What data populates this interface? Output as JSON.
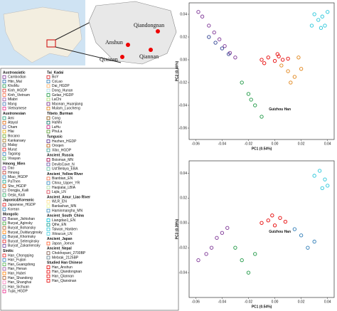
{
  "map": {
    "places": [
      "Anshun",
      "Qiandongnan",
      "Qixinan",
      "Qiannan"
    ]
  },
  "legend": {
    "groups": [
      {
        "title": "Austroasiatic",
        "items": [
          {
            "name": "Cambodian",
            "color": "#7b3294"
          },
          {
            "name": "Htin_Mal",
            "color": "#2166ac"
          },
          {
            "name": "KhoMu",
            "color": "#1a9850"
          },
          {
            "name": "Kinh_HGDP",
            "color": "#d73027"
          },
          {
            "name": "Kinh_Vietnam",
            "color": "#f46d43"
          },
          {
            "name": "Mlabri",
            "color": "#984ea3"
          },
          {
            "name": "Mang",
            "color": "#4575b4"
          },
          {
            "name": "Vietnamese",
            "color": "#e7298a"
          }
        ]
      },
      {
        "title": "Austronesian",
        "items": [
          {
            "name": "Ami",
            "color": "#1b9e77"
          },
          {
            "name": "Atayal",
            "color": "#d95f02"
          },
          {
            "name": "Cham",
            "color": "#7570b3"
          },
          {
            "name": "Hlai",
            "color": "#e6ab02"
          },
          {
            "name": "Bocano",
            "color": "#66a61e"
          },
          {
            "name": "Kankanaey",
            "color": "#a6761d"
          },
          {
            "name": "Malay",
            "color": "#666666"
          },
          {
            "name": "Murut",
            "color": "#e41a1c"
          },
          {
            "name": "Tagalog",
            "color": "#377eb8"
          },
          {
            "name": "Visayan",
            "color": "#4daf4a"
          }
        ]
      },
      {
        "title": "Hmong_Mien",
        "items": [
          {
            "name": "Dao",
            "color": "#8e44ad"
          },
          {
            "name": "Hmong",
            "color": "#c0392b"
          },
          {
            "name": "Miao_HGDP",
            "color": "#2980b9"
          },
          {
            "name": "PaThen",
            "color": "#16a085"
          },
          {
            "name": "She_HGDP",
            "color": "#d35400"
          },
          {
            "name": "Dongjia_Kaili",
            "color": "#7f8c8d"
          },
          {
            "name": "Gejia_Kaili",
            "color": "#27ae60"
          }
        ]
      },
      {
        "title": "Japonic&Koreanic",
        "items": [
          {
            "name": "Japanese_HGDP",
            "color": "#e31a1c"
          },
          {
            "name": "Korean",
            "color": "#1f78b4"
          }
        ]
      },
      {
        "title": "Mongolic",
        "items": [
          {
            "name": "Baoan_Jishishan",
            "color": "#6a3d9a"
          },
          {
            "name": "Buryat_Aginsky",
            "color": "#33a02c"
          },
          {
            "name": "Buryat_Bohansky",
            "color": "#b15928"
          },
          {
            "name": "Buryat_Dulduryginsky",
            "color": "#ff7f00"
          },
          {
            "name": "Buryat_Khorinsky",
            "color": "#1f78b4"
          },
          {
            "name": "Buryat_Selenginsky",
            "color": "#e31a1c"
          },
          {
            "name": "Buryat_Zakamensky",
            "color": "#6a3d9a"
          }
        ]
      },
      {
        "title": "Sinitic",
        "items": [
          {
            "name": "Han_Chongqing",
            "color": "#e41a1c"
          },
          {
            "name": "Han_Fujian",
            "color": "#377eb8"
          },
          {
            "name": "Han_Guangdong",
            "color": "#4daf4a"
          },
          {
            "name": "Han_Henan",
            "color": "#984ea3"
          },
          {
            "name": "Han_Hubei",
            "color": "#ff7f00"
          },
          {
            "name": "Han_Shandong",
            "color": "#a65628"
          },
          {
            "name": "Han_Shanghai",
            "color": "#f781bf"
          },
          {
            "name": "Han_Sichuan",
            "color": "#999999"
          },
          {
            "name": "Tujia_HGDP",
            "color": "#e7298a"
          }
        ]
      },
      {
        "title": "Tai_Kadai",
        "items": [
          {
            "name": "BoY",
            "color": "#d7191c"
          },
          {
            "name": "CoLao",
            "color": "#2c7bb6"
          },
          {
            "name": "Dai_HGDP",
            "color": "#fdae61"
          },
          {
            "name": "Dong_Hunan",
            "color": "#abd9e9"
          },
          {
            "name": "Gelao_HGDP",
            "color": "#1a9641"
          },
          {
            "name": "LaChi",
            "color": "#a6d96a"
          },
          {
            "name": "Maonan_Huanjiang",
            "color": "#762a83"
          },
          {
            "name": "Mulam_Luocheng",
            "color": "#e08214"
          }
        ]
      },
      {
        "title": "Tibeto_Burman",
        "items": [
          {
            "name": "Cong",
            "color": "#8c510a"
          },
          {
            "name": "HaNhi",
            "color": "#01665e"
          },
          {
            "name": "LaHu",
            "color": "#c51b7d"
          },
          {
            "name": "PhuLa",
            "color": "#4d9221"
          }
        ]
      },
      {
        "title": "Tungusic",
        "items": [
          {
            "name": "Hezhen_HGDP",
            "color": "#542788"
          },
          {
            "name": "Oroqen",
            "color": "#b35806"
          },
          {
            "name": "Xibo_HGDP",
            "color": "#35978f"
          }
        ]
      },
      {
        "title": "Ancient_Russia",
        "items": [
          {
            "name": "Boisman_MN",
            "color": "#9e0142"
          },
          {
            "name": "DevilsCave_N",
            "color": "#5e4fa2"
          },
          {
            "name": "Ust'Belaya_EBA",
            "color": "#66c2a5"
          }
        ]
      },
      {
        "title": "Ancient_Yellow River",
        "items": [
          {
            "name": "Bianbian_EN",
            "color": "#f46d43"
          },
          {
            "name": "China_Upper_YR",
            "color": "#3288bd"
          },
          {
            "name": "Haojiatai_LBIA",
            "color": "#abdda4"
          },
          {
            "name": "Lajia_LN",
            "color": "#d53e4f"
          }
        ]
      },
      {
        "title": "Ancient_Amur_Liao River",
        "items": [
          {
            "name": "WLR_EN",
            "color": "#fee08b"
          },
          {
            "name": "Banlashan_MN",
            "color": "#e6f598"
          },
          {
            "name": "Haminmangha_MN",
            "color": "#3288bd"
          }
        ]
      },
      {
        "title": "Ancient_South_China",
        "items": [
          {
            "name": "Liangdao1_EN",
            "color": "#00bcd4"
          },
          {
            "name": "Qihe_EN",
            "color": "#009688"
          },
          {
            "name": "Taiwan_Hanben",
            "color": "#26c6da"
          },
          {
            "name": "Xitoucun_LN",
            "color": "#4dd0e1"
          }
        ]
      },
      {
        "title": "Ancient_Japan",
        "items": [
          {
            "name": "Japan_Jomon",
            "color": "#ff5722"
          }
        ]
      },
      {
        "title": "Ancient_Nepal",
        "items": [
          {
            "name": "Chokhopani_2700BP",
            "color": "#795548"
          },
          {
            "name": "Mebrak_2125BP",
            "color": "#607d8b"
          }
        ]
      },
      {
        "title": "Studied Han Chinese",
        "items": [
          {
            "name": "Han_Anshun",
            "color": "#e60000"
          },
          {
            "name": "Han_Qiandongnan",
            "color": "#e60000"
          },
          {
            "name": "Han_Qiannan",
            "color": "#e60000"
          },
          {
            "name": "Han_Qianxinan",
            "color": "#e60000"
          }
        ]
      }
    ]
  },
  "chart_data": [
    {
      "type": "scatter",
      "xlabel": "PC1 (0.54%)",
      "ylabel": "PC2 (0.46%)",
      "annotation": "Guizhou Han",
      "xlim": [
        -0.065,
        0.045
      ],
      "xticks": [
        -0.06,
        -0.04,
        -0.02,
        {
          "value": 0,
          "label": "0.00"
        },
        0.02,
        0.04
      ],
      "ylim": [
        -0.07,
        0.05
      ],
      "yticks": [
        -0.06,
        -0.04,
        -0.02,
        {
          "value": 0,
          "label": "0.00"
        },
        0.02,
        0.04
      ],
      "series": [
        {
          "color": "#7b3294",
          "x": [
            -0.058,
            -0.055,
            -0.05,
            -0.046,
            -0.042,
            -0.038,
            -0.034,
            -0.03
          ],
          "values": [
            0.042,
            0.038,
            0.03,
            0.024,
            0.018,
            0.012,
            0.006,
            0.002
          ]
        },
        {
          "color": "#26c6da",
          "x": [
            0.03,
            0.033,
            0.036,
            0.038,
            0.04,
            0.035,
            0.028
          ],
          "values": [
            0.04,
            0.035,
            0.038,
            0.03,
            0.042,
            0.028,
            0.03
          ]
        },
        {
          "color": "#e60000",
          "x": [
            -0.01,
            -0.005,
            0,
            0.003,
            0.006,
            -0.008,
            0.002,
            0.01
          ],
          "values": [
            0,
            0.002,
            -0.001,
            0.003,
            0,
            -0.003,
            0.005,
            0.001
          ]
        },
        {
          "color": "#e08214",
          "x": [
            0.005,
            0.01,
            0.015,
            0.02,
            0.012,
            0.018
          ],
          "values": [
            -0.005,
            -0.01,
            -0.015,
            -0.008,
            -0.02,
            0.002
          ]
        },
        {
          "color": "#1a9641",
          "x": [
            -0.02,
            -0.015,
            -0.025,
            -0.01,
            -0.018
          ],
          "values": [
            -0.03,
            -0.04,
            -0.02,
            -0.05,
            -0.035
          ]
        },
        {
          "color": "#2c3e90",
          "x": [
            -0.05,
            -0.045,
            -0.04,
            -0.035
          ],
          "values": [
            0.02,
            0.015,
            0.01,
            0.005
          ]
        }
      ]
    },
    {
      "type": "scatter",
      "xlabel": "PC1 (0.54%)",
      "ylabel": "PC3 (0.39%)",
      "annotation": "Guizhou Han",
      "xlim": [
        -0.065,
        0.045
      ],
      "xticks": [
        -0.06,
        -0.04,
        -0.02,
        {
          "value": 0,
          "label": "0.00"
        },
        0.02,
        0.04
      ],
      "ylim": [
        -0.06,
        0.05
      ],
      "yticks": [
        -0.04,
        -0.02,
        {
          "value": 0,
          "label": "0.00"
        },
        0.02,
        0.04
      ],
      "series": [
        {
          "color": "#7b3294",
          "x": [
            -0.058,
            -0.052,
            -0.048,
            -0.044,
            -0.04,
            -0.036
          ],
          "values": [
            -0.03,
            -0.025,
            -0.02,
            -0.012,
            -0.008,
            -0.004
          ]
        },
        {
          "color": "#26c6da",
          "x": [
            0.03,
            0.034,
            0.038,
            0.04,
            0.036
          ],
          "values": [
            0.038,
            0.042,
            0.035,
            0.03,
            0.028
          ]
        },
        {
          "color": "#e60000",
          "x": [
            -0.01,
            -0.005,
            0,
            0.004,
            0.008,
            -0.002
          ],
          "values": [
            0,
            0.002,
            -0.002,
            0.004,
            0.001,
            0.006
          ]
        },
        {
          "color": "#1a9641",
          "x": [
            -0.03,
            -0.025,
            -0.02,
            -0.015
          ],
          "values": [
            -0.02,
            -0.03,
            -0.04,
            -0.025
          ]
        },
        {
          "color": "#2c7bb6",
          "x": [
            0.02,
            0.025,
            0.03,
            0.015
          ],
          "values": [
            -0.01,
            -0.02,
            -0.015,
            -0.005
          ]
        }
      ]
    }
  ]
}
